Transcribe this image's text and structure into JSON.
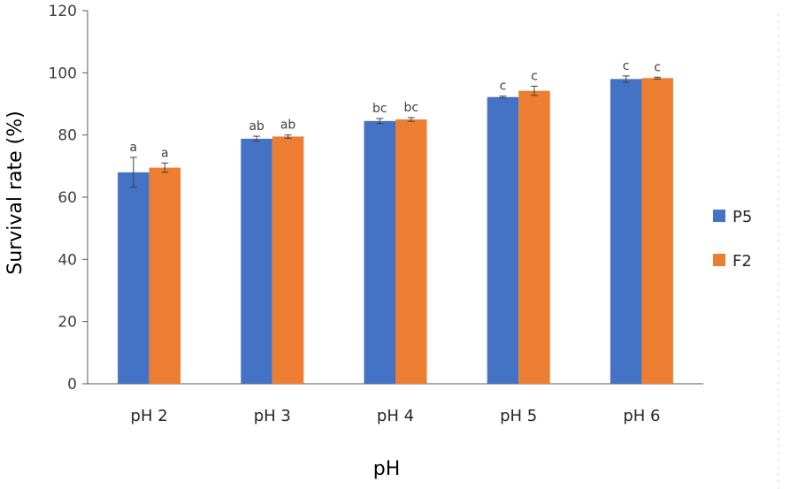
{
  "chart_data": {
    "type": "bar",
    "title": "",
    "xlabel": "pH",
    "ylabel": "Survival rate (%)",
    "categories": [
      "pH 2",
      "pH 3",
      "pH 4",
      "pH 5",
      "pH 6"
    ],
    "ylim": [
      0,
      120
    ],
    "yticks": [
      0,
      20,
      40,
      60,
      80,
      100,
      120
    ],
    "grid": false,
    "legend_position": "right",
    "series": [
      {
        "name": "P5",
        "color": "#4472C4",
        "values": [
          68.0,
          78.8,
          84.5,
          92.2,
          98.0
        ],
        "errors": [
          4.8,
          0.8,
          0.8,
          0.3,
          1.0
        ],
        "labels": [
          "a",
          "ab",
          "bc",
          "c",
          "c"
        ]
      },
      {
        "name": "F2",
        "color": "#ED7D31",
        "values": [
          69.5,
          79.5,
          85.0,
          94.2,
          98.3
        ],
        "errors": [
          1.5,
          0.5,
          0.6,
          1.5,
          0.3
        ],
        "labels": [
          "a",
          "ab",
          "bc",
          "c",
          "c"
        ]
      }
    ]
  }
}
